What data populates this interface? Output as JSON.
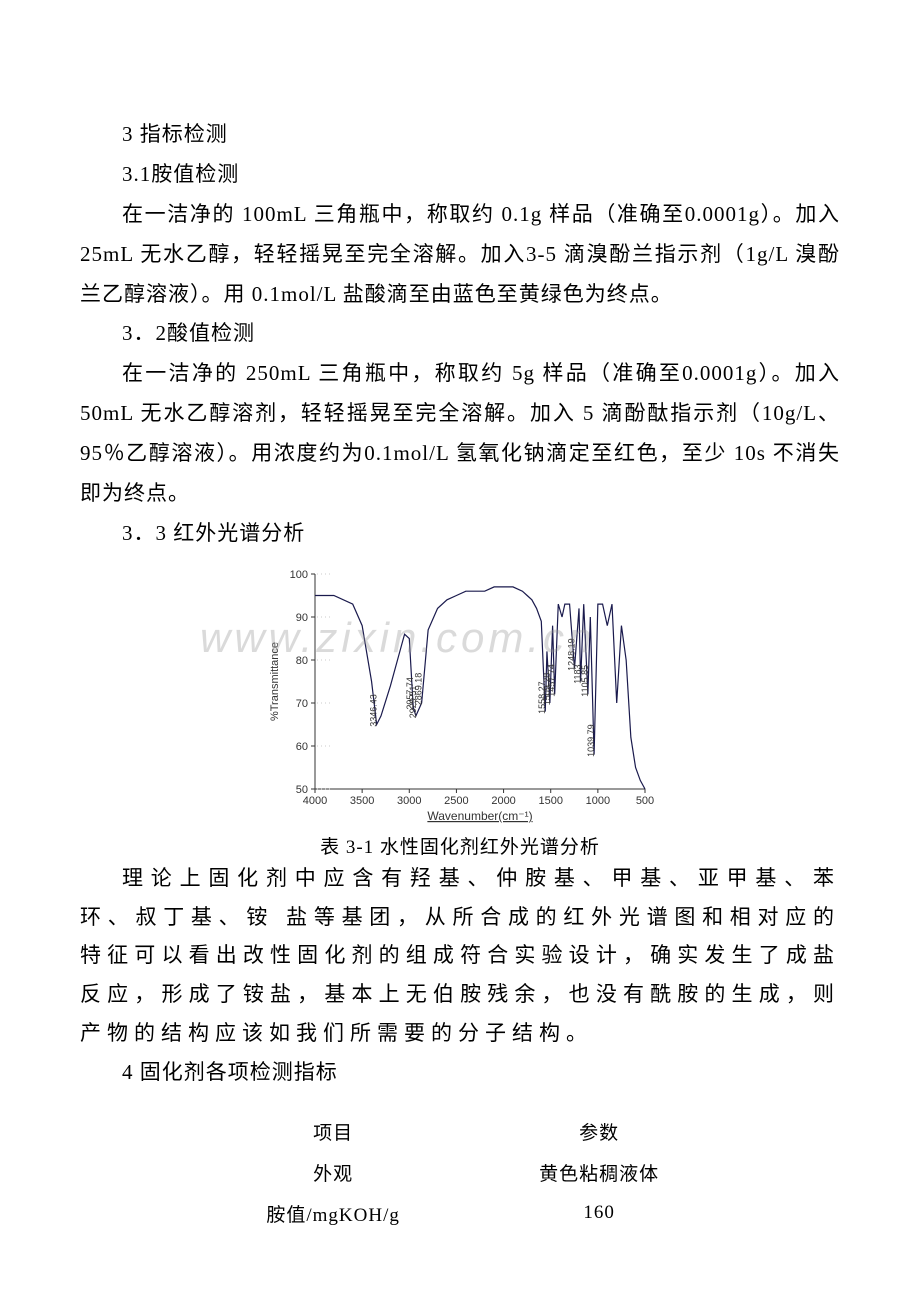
{
  "sec3": {
    "heading": "3 指标检测"
  },
  "sec31": {
    "heading": "3.1胺值检测",
    "body": "在一洁净的 100mL 三角瓶中，称取约 0.1g 样品（准确至0.0001g）。加入 25mL 无水乙醇，轻轻摇晃至完全溶解。加入3-5 滴溴酚兰指示剂（1g/L 溴酚兰乙醇溶液）。用 0.1mol/L 盐酸滴至由蓝色至黄绿色为终点。"
  },
  "sec32": {
    "heading": "3．2酸值检测",
    "body": "在一洁净的 250mL 三角瓶中，称取约 5g 样品（准确至0.0001g）。加入 50mL 无水乙醇溶剂，轻轻摇晃至完全溶解。加入 5 滴酚酞指示剂（10g/L、95％乙醇溶液）。用浓度约为0.1mol/L 氢氧化钠滴定至红色，至少 10s 不消失即为终点。"
  },
  "sec33": {
    "heading": "3．3 红外光谱分析"
  },
  "ir_chart": {
    "type": "line",
    "ylabel": "%Transmittance",
    "xlabel": "Wavenumber(cm⁻¹)",
    "xlim_left": 4000,
    "xlim_right": 500,
    "xticks": [
      4000,
      3500,
      3000,
      2500,
      2000,
      1500,
      1000,
      500
    ],
    "ylim": [
      50,
      100
    ],
    "yticks": [
      50,
      60,
      70,
      80,
      90,
      100
    ],
    "peak_labels": [
      "3346.43",
      "2957.74",
      "2929.51",
      "2869.18",
      "1558.27",
      "1509.28",
      "1457.74",
      "1248.19",
      "1183",
      "1105.85",
      "1039.79"
    ],
    "line_color": "#1a1a4d",
    "axis_color": "#333333",
    "background": "#ffffff",
    "line_width": 1.2,
    "data_x": [
      4000,
      3800,
      3600,
      3500,
      3400,
      3346,
      3300,
      3200,
      3100,
      3050,
      3000,
      2958,
      2930,
      2869,
      2800,
      2700,
      2600,
      2500,
      2400,
      2300,
      2200,
      2100,
      2000,
      1900,
      1800,
      1750,
      1700,
      1650,
      1600,
      1558,
      1540,
      1509,
      1480,
      1458,
      1420,
      1380,
      1350,
      1300,
      1248,
      1200,
      1183,
      1150,
      1106,
      1080,
      1040,
      1000,
      950,
      900,
      850,
      800,
      750,
      700,
      650,
      600,
      550,
      500
    ],
    "data_y": [
      95,
      95,
      93,
      88,
      75,
      65,
      67,
      74,
      82,
      86,
      85,
      69,
      67,
      70,
      87,
      92,
      94,
      95,
      96,
      96,
      96,
      97,
      97,
      97,
      96,
      95,
      94,
      92,
      89,
      68,
      82,
      70,
      88,
      72,
      93,
      90,
      93,
      93,
      78,
      92,
      75,
      93,
      72,
      90,
      58,
      93,
      93,
      88,
      93,
      70,
      88,
      80,
      62,
      55,
      52,
      50
    ]
  },
  "chart_caption": "表 3-1 水性固化剂红外光谱分析",
  "analysis": "理论上固化剂中应含有羟基、仲胺基、甲基、亚甲基、苯环、叔丁基、铵 盐等基团，从所合成的红外光谱图和相对应的特征可以看出改性固化剂的组成符合实验设计，确实发生了成盐反应，形成了铵盐，基本上无伯胺残余，也没有酰胺的生成，则产物的结构应该如我们所需要的分子结构。",
  "sec4": {
    "heading": "4 固化剂各项检测指标"
  },
  "table": {
    "rows": [
      [
        "项目",
        "参数"
      ],
      [
        "外观",
        "黄色粘稠液体"
      ],
      [
        "胺值/mgKOH/g",
        "160"
      ]
    ]
  },
  "watermark": "www.zixin.com.cn"
}
